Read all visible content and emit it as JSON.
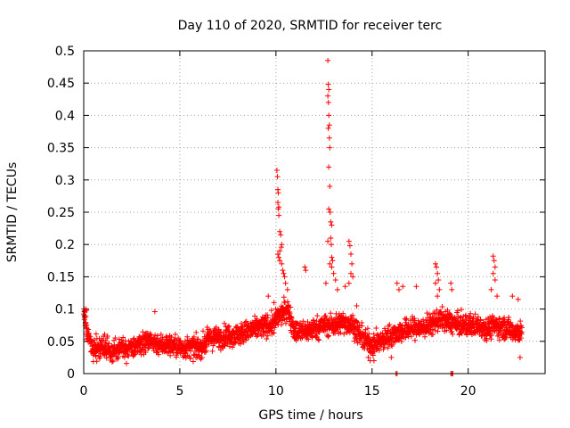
{
  "chart_data": {
    "type": "scatter",
    "title": "Day 110 of 2020, SRMTID for receiver terc",
    "xlabel": "GPS time / hours",
    "ylabel": "SRMTID / TECUs",
    "xlim": [
      0,
      24
    ],
    "ylim": [
      0,
      0.5
    ],
    "grid": true,
    "xticks": [
      "0",
      "5",
      "10",
      "15",
      "20"
    ],
    "yticks": [
      "0",
      "0.05",
      "0.1",
      "0.15",
      "0.2",
      "0.25",
      "0.3",
      "0.35",
      "0.4",
      "0.45",
      "0.5"
    ],
    "marker": "+",
    "color": "#ff0000",
    "baseline": [
      [
        0.0,
        0.095
      ],
      [
        0.2,
        0.06
      ],
      [
        0.5,
        0.04
      ],
      [
        1.0,
        0.04
      ],
      [
        1.5,
        0.035
      ],
      [
        2.0,
        0.04
      ],
      [
        2.5,
        0.04
      ],
      [
        3.0,
        0.045
      ],
      [
        3.5,
        0.05
      ],
      [
        4.0,
        0.045
      ],
      [
        4.5,
        0.045
      ],
      [
        5.0,
        0.04
      ],
      [
        5.5,
        0.04
      ],
      [
        6.0,
        0.04
      ],
      [
        6.3,
        0.045
      ],
      [
        6.5,
        0.055
      ],
      [
        7.0,
        0.055
      ],
      [
        7.5,
        0.06
      ],
      [
        8.0,
        0.06
      ],
      [
        8.5,
        0.065
      ],
      [
        9.0,
        0.07
      ],
      [
        9.5,
        0.075
      ],
      [
        9.8,
        0.075
      ],
      [
        10.2,
        0.09
      ],
      [
        10.6,
        0.1
      ],
      [
        11.0,
        0.065
      ],
      [
        11.5,
        0.065
      ],
      [
        12.0,
        0.07
      ],
      [
        12.5,
        0.075
      ],
      [
        13.0,
        0.075
      ],
      [
        13.5,
        0.08
      ],
      [
        14.0,
        0.075
      ],
      [
        14.5,
        0.055
      ],
      [
        15.0,
        0.045
      ],
      [
        15.5,
        0.05
      ],
      [
        16.0,
        0.06
      ],
      [
        16.5,
        0.065
      ],
      [
        17.0,
        0.07
      ],
      [
        17.5,
        0.07
      ],
      [
        18.0,
        0.075
      ],
      [
        18.5,
        0.085
      ],
      [
        19.0,
        0.08
      ],
      [
        19.5,
        0.075
      ],
      [
        20.0,
        0.075
      ],
      [
        20.5,
        0.075
      ],
      [
        21.0,
        0.07
      ],
      [
        21.5,
        0.075
      ],
      [
        22.0,
        0.07
      ],
      [
        22.5,
        0.065
      ],
      [
        22.8,
        0.065
      ]
    ],
    "notable_points": [
      [
        0.1,
        0.1
      ],
      [
        0.15,
        0.098
      ],
      [
        0.05,
        0.087
      ],
      [
        3.7,
        0.096
      ],
      [
        9.6,
        0.12
      ],
      [
        9.9,
        0.11
      ],
      [
        10.05,
        0.315
      ],
      [
        10.08,
        0.305
      ],
      [
        10.1,
        0.285
      ],
      [
        10.12,
        0.28
      ],
      [
        10.1,
        0.265
      ],
      [
        10.15,
        0.258
      ],
      [
        10.12,
        0.255
      ],
      [
        10.15,
        0.245
      ],
      [
        10.2,
        0.22
      ],
      [
        10.25,
        0.215
      ],
      [
        10.3,
        0.2
      ],
      [
        10.28,
        0.196
      ],
      [
        10.2,
        0.19
      ],
      [
        10.1,
        0.185
      ],
      [
        10.15,
        0.18
      ],
      [
        10.2,
        0.175
      ],
      [
        10.3,
        0.17
      ],
      [
        10.35,
        0.16
      ],
      [
        10.4,
        0.155
      ],
      [
        10.45,
        0.15
      ],
      [
        10.5,
        0.14
      ],
      [
        10.6,
        0.13
      ],
      [
        11.5,
        0.165
      ],
      [
        11.55,
        0.16
      ],
      [
        12.7,
        0.485
      ],
      [
        12.72,
        0.448
      ],
      [
        12.75,
        0.44
      ],
      [
        12.7,
        0.43
      ],
      [
        12.73,
        0.42
      ],
      [
        12.75,
        0.4
      ],
      [
        12.78,
        0.385
      ],
      [
        12.72,
        0.38
      ],
      [
        12.78,
        0.365
      ],
      [
        12.8,
        0.35
      ],
      [
        12.75,
        0.32
      ],
      [
        12.8,
        0.29
      ],
      [
        12.75,
        0.255
      ],
      [
        12.82,
        0.25
      ],
      [
        12.85,
        0.235
      ],
      [
        12.9,
        0.23
      ],
      [
        12.85,
        0.21
      ],
      [
        12.88,
        0.2
      ],
      [
        12.7,
        0.205
      ],
      [
        12.9,
        0.18
      ],
      [
        12.95,
        0.175
      ],
      [
        12.8,
        0.17
      ],
      [
        12.9,
        0.165
      ],
      [
        13.0,
        0.155
      ],
      [
        13.1,
        0.145
      ],
      [
        13.2,
        0.13
      ],
      [
        12.6,
        0.14
      ],
      [
        13.6,
        0.135
      ],
      [
        13.8,
        0.205
      ],
      [
        13.85,
        0.198
      ],
      [
        13.9,
        0.185
      ],
      [
        13.95,
        0.17
      ],
      [
        13.9,
        0.155
      ],
      [
        14.0,
        0.15
      ],
      [
        13.8,
        0.14
      ],
      [
        14.2,
        0.105
      ],
      [
        14.8,
        0.025
      ],
      [
        14.9,
        0.02
      ],
      [
        15.1,
        0.02
      ],
      [
        16.3,
        0.14
      ],
      [
        16.4,
        0.13
      ],
      [
        16.6,
        0.135
      ],
      [
        17.3,
        0.135
      ],
      [
        16.0,
        0.025
      ],
      [
        18.3,
        0.17
      ],
      [
        18.35,
        0.165
      ],
      [
        18.4,
        0.155
      ],
      [
        18.45,
        0.145
      ],
      [
        18.3,
        0.14
      ],
      [
        18.5,
        0.13
      ],
      [
        18.4,
        0.12
      ],
      [
        19.1,
        0.14
      ],
      [
        19.15,
        0.13
      ],
      [
        21.3,
        0.182
      ],
      [
        21.35,
        0.175
      ],
      [
        21.4,
        0.165
      ],
      [
        21.3,
        0.155
      ],
      [
        21.4,
        0.145
      ],
      [
        21.2,
        0.13
      ],
      [
        21.5,
        0.12
      ],
      [
        22.3,
        0.12
      ],
      [
        22.6,
        0.115
      ],
      [
        22.7,
        0.025
      ]
    ],
    "zero_points": [
      [
        16.25,
        0.0
      ],
      [
        16.3,
        0.0
      ],
      [
        19.1,
        0.0
      ],
      [
        19.15,
        0.0
      ],
      [
        19.2,
        0.0
      ]
    ]
  }
}
